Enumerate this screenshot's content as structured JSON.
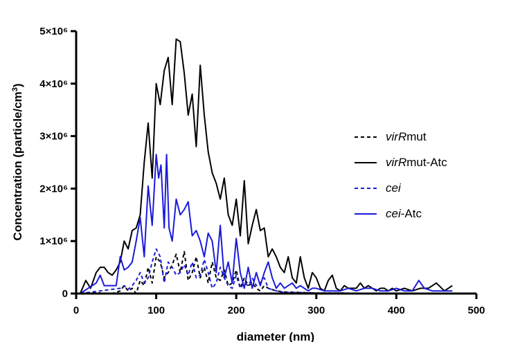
{
  "chart_data": {
    "type": "line",
    "xlabel": "diameter (nm)",
    "ylabel": "Concentration (particle/cm",
    "ylabel_sup": "3",
    "ylabel_close": ")",
    "xlim": [
      0,
      500
    ],
    "ylim": [
      0,
      5000000
    ],
    "x_ticks": [
      0,
      100,
      200,
      300,
      400,
      500
    ],
    "x_tick_labels": [
      "0",
      "100",
      "200",
      "300",
      "400",
      "500"
    ],
    "y_ticks": [
      0,
      1000000,
      2000000,
      3000000,
      4000000,
      5000000
    ],
    "y_tick_labels": [
      "0",
      "1×10⁶",
      "2×10⁶",
      "3×10⁶",
      "4×10⁶",
      "5×10⁶"
    ],
    "grid": false,
    "legend_position": "right",
    "series": [
      {
        "name": "virRmut",
        "name_italic": "virR",
        "name_rest": "mut",
        "color": "#000000",
        "dash": true,
        "x": [
          5,
          15,
          25,
          35,
          45,
          55,
          60,
          65,
          70,
          75,
          80,
          85,
          90,
          95,
          100,
          105,
          110,
          115,
          120,
          125,
          130,
          135,
          140,
          145,
          150,
          155,
          160,
          165,
          170,
          175,
          180,
          185,
          190,
          195,
          200,
          205,
          210,
          215,
          220,
          225,
          230,
          235,
          240,
          250,
          260,
          280,
          300,
          330,
          360,
          400,
          450
        ],
        "y": [
          0,
          20000,
          20000,
          0,
          0,
          50000,
          150000,
          50000,
          100000,
          0,
          250000,
          150000,
          500000,
          200000,
          700000,
          600000,
          300000,
          400000,
          550000,
          750000,
          400000,
          800000,
          250000,
          400000,
          700000,
          300000,
          500000,
          200000,
          600000,
          300000,
          250000,
          450000,
          150000,
          200000,
          450000,
          100000,
          300000,
          150000,
          200000,
          100000,
          50000,
          150000,
          100000,
          50000,
          30000,
          20000,
          10000,
          10000,
          0,
          0,
          0
        ]
      },
      {
        "name": "virRmut-Atc",
        "name_italic": "virR",
        "name_rest": "mut-Atc",
        "color": "#000000",
        "dash": false,
        "x": [
          5,
          12,
          18,
          25,
          30,
          35,
          40,
          45,
          50,
          55,
          60,
          65,
          70,
          75,
          80,
          85,
          90,
          95,
          100,
          105,
          110,
          115,
          120,
          125,
          130,
          135,
          140,
          145,
          150,
          155,
          160,
          165,
          170,
          175,
          180,
          185,
          190,
          195,
          200,
          205,
          210,
          215,
          220,
          225,
          230,
          235,
          240,
          245,
          250,
          255,
          260,
          265,
          270,
          275,
          280,
          285,
          290,
          295,
          300,
          305,
          310,
          315,
          320,
          325,
          330,
          335,
          340,
          345,
          350,
          355,
          360,
          365,
          370,
          375,
          380,
          385,
          390,
          395,
          400,
          410,
          420,
          430,
          440,
          450,
          460,
          470
        ],
        "y": [
          0,
          250000,
          100000,
          400000,
          500000,
          500000,
          400000,
          350000,
          450000,
          600000,
          1000000,
          850000,
          1200000,
          1250000,
          1500000,
          2500000,
          3250000,
          2200000,
          4000000,
          3600000,
          4250000,
          4500000,
          3600000,
          4850000,
          4800000,
          4200000,
          3400000,
          3800000,
          2800000,
          4350000,
          3400000,
          2700000,
          2300000,
          2100000,
          1800000,
          2200000,
          1500000,
          1300000,
          1800000,
          1100000,
          2150000,
          950000,
          1300000,
          1600000,
          1200000,
          1250000,
          700000,
          850000,
          700000,
          500000,
          400000,
          700000,
          300000,
          200000,
          700000,
          300000,
          100000,
          400000,
          300000,
          100000,
          50000,
          250000,
          350000,
          100000,
          50000,
          150000,
          100000,
          100000,
          100000,
          200000,
          100000,
          150000,
          100000,
          50000,
          100000,
          100000,
          50000,
          100000,
          50000,
          100000,
          50000,
          100000,
          100000,
          200000,
          50000,
          150000
        ]
      },
      {
        "name": "cei",
        "name_italic": "cei",
        "name_rest": "",
        "color": "#1a1adb",
        "dash": true,
        "x": [
          5,
          55,
          60,
          65,
          70,
          75,
          80,
          85,
          90,
          95,
          100,
          105,
          110,
          115,
          120,
          125,
          130,
          135,
          140,
          145,
          150,
          155,
          160,
          165,
          170,
          175,
          180,
          185,
          190,
          195,
          200,
          205,
          210,
          215,
          220,
          225,
          230,
          235,
          240,
          250,
          260,
          280,
          300,
          330,
          360,
          400,
          450
        ],
        "y": [
          0,
          100000,
          150000,
          80000,
          150000,
          250000,
          400000,
          200000,
          300000,
          600000,
          850000,
          700000,
          200000,
          600000,
          500000,
          350000,
          400000,
          550000,
          350000,
          600000,
          300000,
          350000,
          650000,
          400000,
          100000,
          200000,
          500000,
          300000,
          150000,
          100000,
          350000,
          100000,
          200000,
          150000,
          300000,
          150000,
          200000,
          300000,
          100000,
          50000,
          20000,
          20000,
          10000,
          10000,
          0,
          0,
          0
        ]
      },
      {
        "name": "cei-Atc",
        "name_italic": "cei",
        "name_rest": "-Atc",
        "color": "#1a1adb",
        "dash": false,
        "x": [
          5,
          15,
          25,
          30,
          35,
          45,
          50,
          55,
          60,
          65,
          70,
          75,
          80,
          85,
          90,
          95,
          100,
          103,
          106,
          110,
          113,
          116,
          120,
          125,
          130,
          135,
          140,
          145,
          150,
          155,
          160,
          165,
          170,
          175,
          180,
          185,
          190,
          195,
          200,
          205,
          210,
          215,
          220,
          225,
          230,
          235,
          240,
          245,
          250,
          255,
          260,
          265,
          270,
          275,
          280,
          285,
          290,
          295,
          300,
          310,
          320,
          330,
          340,
          350,
          360,
          370,
          380,
          390,
          400,
          410,
          420,
          428,
          435,
          445,
          455,
          470
        ],
        "y": [
          0,
          100000,
          200000,
          350000,
          150000,
          150000,
          150000,
          700000,
          450000,
          500000,
          600000,
          1000000,
          1450000,
          700000,
          2050000,
          1300000,
          2650000,
          2200000,
          2450000,
          1250000,
          2650000,
          1250000,
          1000000,
          1800000,
          1500000,
          1600000,
          1750000,
          1100000,
          1200000,
          1000000,
          700000,
          1150000,
          1000000,
          400000,
          1300000,
          300000,
          600000,
          200000,
          1050000,
          400000,
          100000,
          500000,
          100000,
          400000,
          150000,
          400000,
          600000,
          300000,
          100000,
          200000,
          100000,
          150000,
          200000,
          100000,
          150000,
          100000,
          50000,
          100000,
          100000,
          50000,
          50000,
          50000,
          100000,
          50000,
          100000,
          100000,
          50000,
          50000,
          100000,
          50000,
          50000,
          250000,
          100000,
          50000,
          50000,
          50000
        ]
      }
    ]
  }
}
